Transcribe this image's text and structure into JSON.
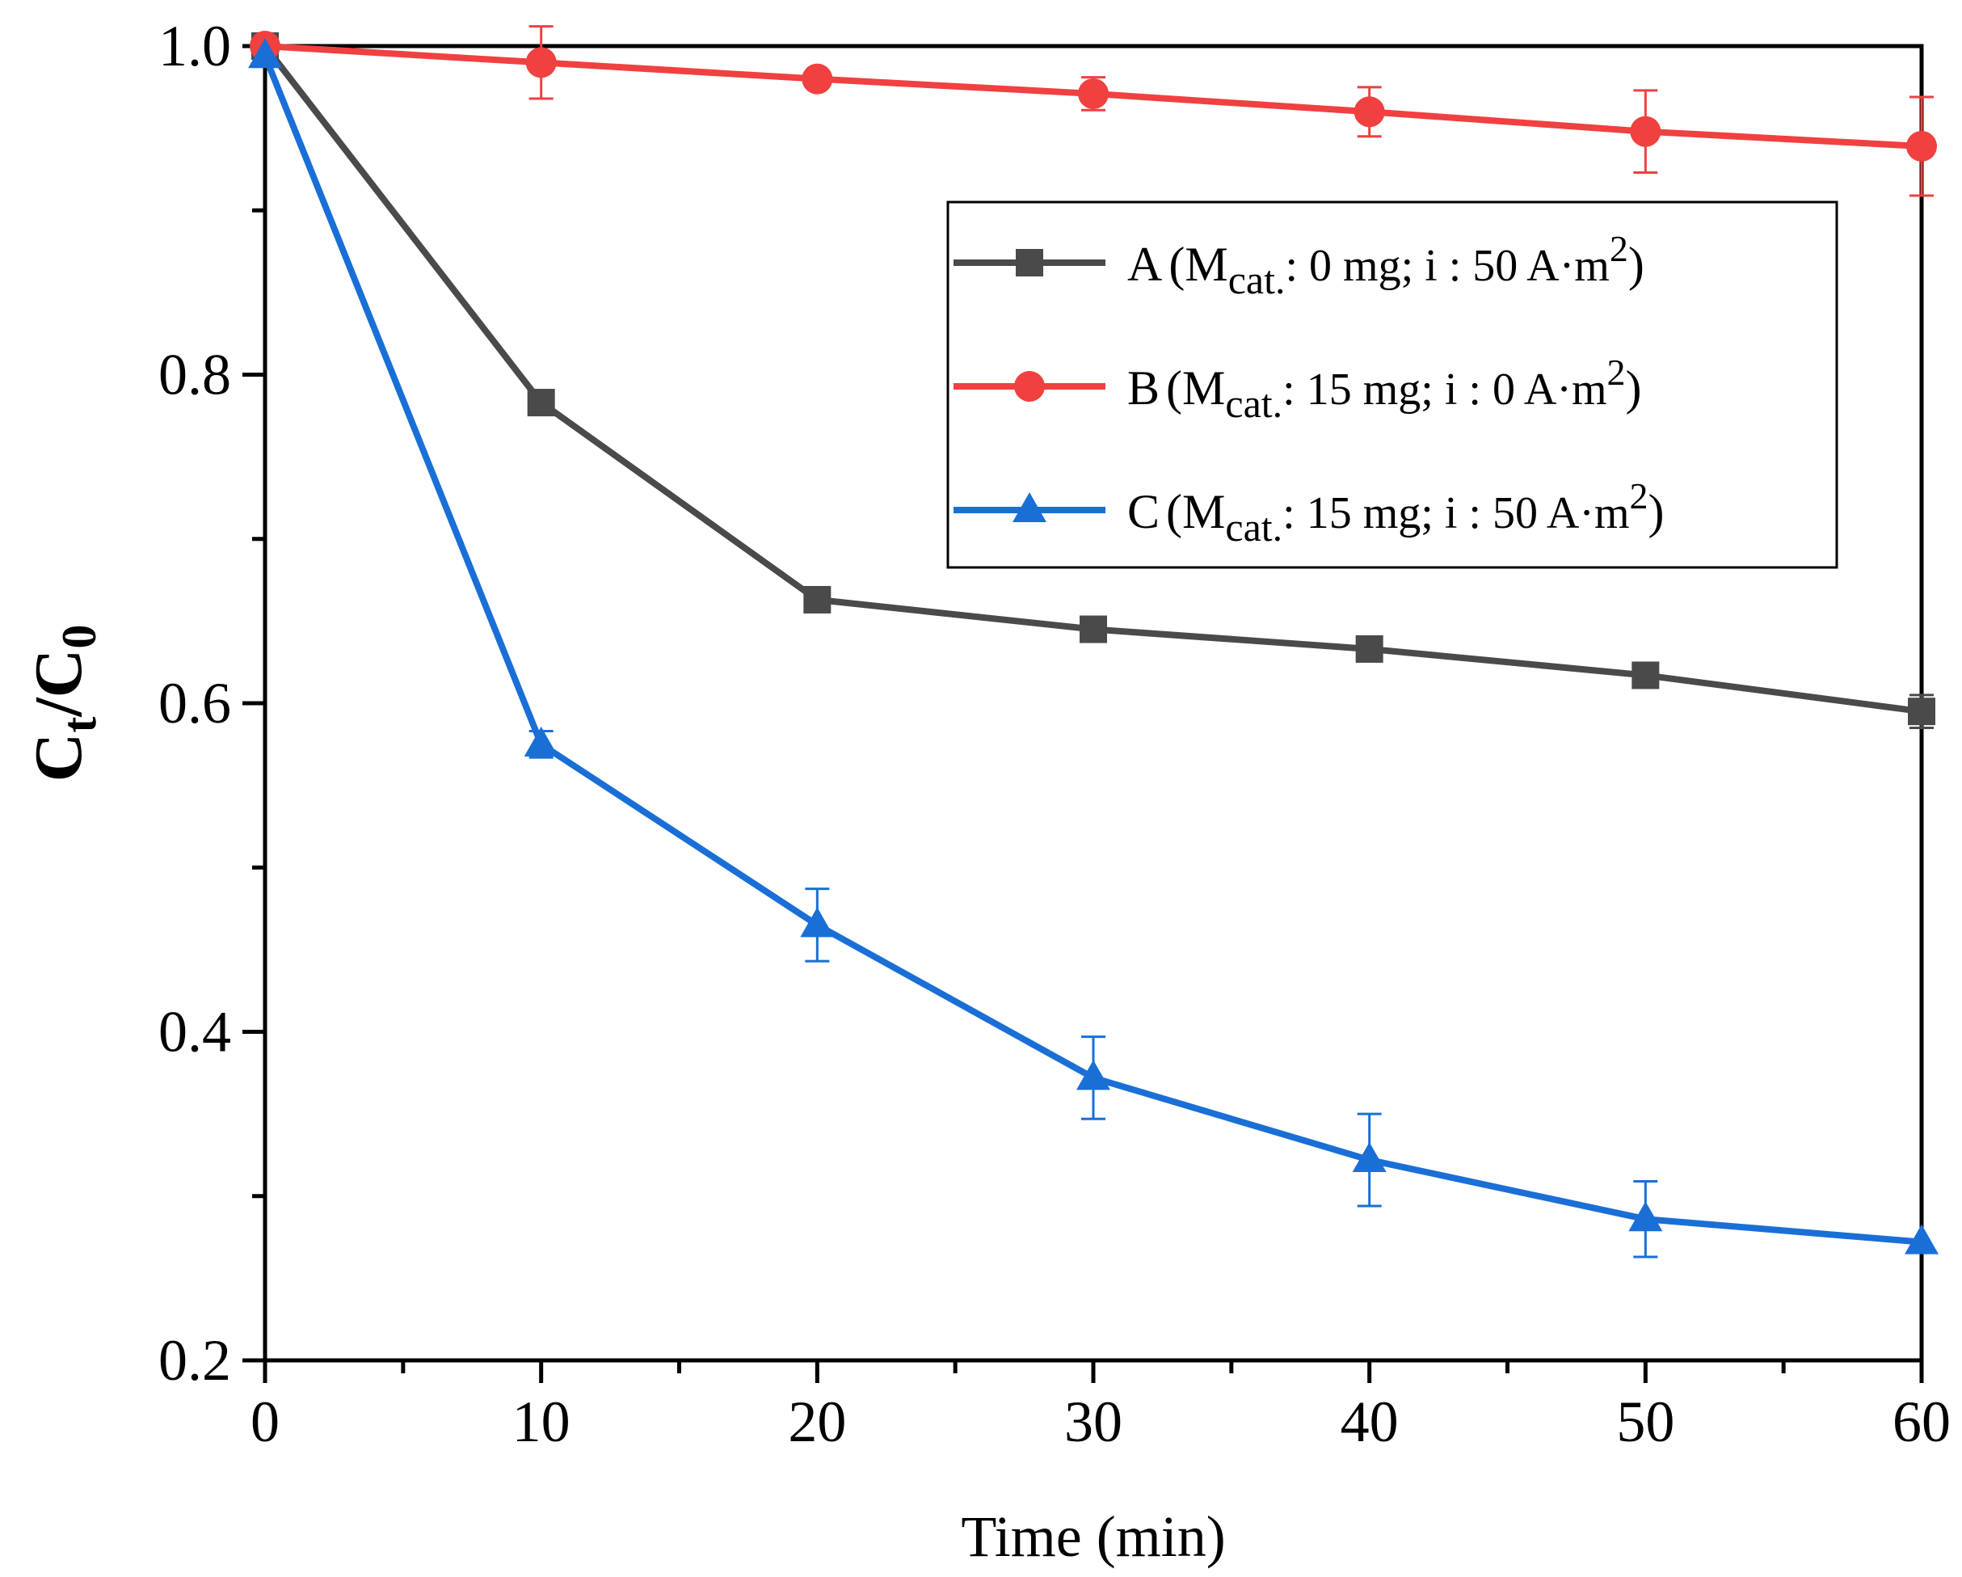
{
  "chart_data": {
    "type": "line",
    "title": "",
    "xlabel": "Time (min)",
    "ylabel": {
      "base": "C",
      "sub1": "t",
      "slash": "/C",
      "sub2": "0"
    },
    "xlim": [
      0,
      60
    ],
    "ylim": [
      0.2,
      1.0
    ],
    "x": [
      0,
      10,
      20,
      30,
      40,
      50,
      60
    ],
    "x_ticks": [
      "0",
      "10",
      "20",
      "30",
      "40",
      "50",
      "60"
    ],
    "y_ticks": [
      "0.2",
      "0.4",
      "0.6",
      "0.8",
      "1.0"
    ],
    "y_tick_values": [
      0.2,
      0.4,
      0.6,
      0.8,
      1.0
    ],
    "series": [
      {
        "name": "A",
        "legend": {
          "prefix": "A",
          "open": "(M",
          "sub": "cat.",
          "mid": ": 0 mg; i : 50 A·m",
          "sup": "2",
          "close": ")"
        },
        "marker": "square",
        "color": "#4a4a4a",
        "values": [
          1.0,
          0.783,
          0.663,
          0.645,
          0.633,
          0.617,
          0.595
        ],
        "errors": [
          0,
          0,
          0,
          0,
          0,
          0,
          0.01
        ]
      },
      {
        "name": "B",
        "legend": {
          "prefix": "B",
          "open": "(M",
          "sub": "cat.",
          "mid": ": 15 mg; i : 0 A·m",
          "sup": "2",
          "close": ")"
        },
        "marker": "circle",
        "color": "#f04040",
        "values": [
          1.0,
          0.99,
          0.98,
          0.971,
          0.96,
          0.948,
          0.939
        ],
        "errors": [
          0,
          0.022,
          0,
          0.01,
          0.015,
          0.025,
          0.03
        ]
      },
      {
        "name": "C",
        "legend": {
          "prefix": "C",
          "open": "(M",
          "sub": "cat.",
          "mid": ": 15 mg; i : 50 A·m",
          "sup": "2",
          "close": ")"
        },
        "marker": "triangle",
        "color": "#1a6fd6",
        "values": [
          0.994,
          0.575,
          0.465,
          0.372,
          0.322,
          0.286,
          0.272
        ],
        "errors": [
          0,
          0.008,
          0.022,
          0.025,
          0.028,
          0.023,
          0
        ]
      }
    ],
    "legend_position": "top-right"
  }
}
